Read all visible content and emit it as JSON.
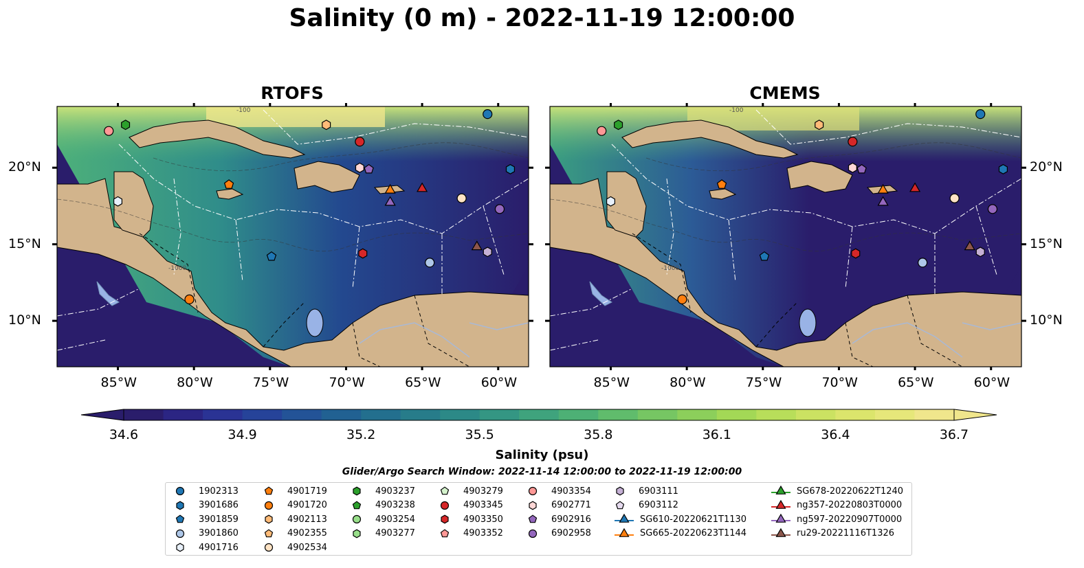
{
  "title": "Salinity (0 m) - 2022-11-19 12:00:00",
  "panels": [
    {
      "title": "RTOFS",
      "lat_ticks": [
        "20°N",
        "15°N",
        "10°N"
      ],
      "lon_ticks": [
        "85°W",
        "80°W",
        "75°W",
        "70°W",
        "65°W",
        "60°W"
      ]
    },
    {
      "title": "CMEMS",
      "lat_ticks": [
        "20°N",
        "15°N",
        "10°N"
      ],
      "lon_ticks": [
        "85°W",
        "80°W",
        "75°W",
        "70°W",
        "65°W",
        "60°W"
      ]
    }
  ],
  "map_extent": {
    "lon": [
      -89,
      -58
    ],
    "lat": [
      7,
      24
    ]
  },
  "colorbar": {
    "label": "Salinity (psu)",
    "ticks": [
      "34.6",
      "34.9",
      "35.2",
      "35.5",
      "35.8",
      "36.1",
      "36.4",
      "36.7"
    ],
    "min": 34.6,
    "max": 36.7,
    "colormap": "haline"
  },
  "colors": {
    "land": "#d2b48c",
    "lake": "#99b3e6",
    "ocean_low": "#2a1d6b",
    "ocean_high": "#f0e68c"
  },
  "search_window": "Glider/Argo Search Window: 2022-11-14 12:00:00 to 2022-11-19 12:00:00",
  "contour_labels": [
    "-100",
    "-1000"
  ],
  "legend": [
    {
      "label": "1902313",
      "marker": "circle",
      "color": "#1f77b4"
    },
    {
      "label": "3901686",
      "marker": "hexagon",
      "color": "#1f77b4"
    },
    {
      "label": "3901859",
      "marker": "pentagon",
      "color": "#1f77b4"
    },
    {
      "label": "3901860",
      "marker": "circle",
      "color": "#aec7e8"
    },
    {
      "label": "4901716",
      "marker": "hexagon",
      "color": "#e8f0fa"
    },
    {
      "label": "4901719",
      "marker": "pentagon",
      "color": "#ff7f0e"
    },
    {
      "label": "4901720",
      "marker": "circle",
      "color": "#ff7f0e"
    },
    {
      "label": "4902113",
      "marker": "hexagon",
      "color": "#ffbb78"
    },
    {
      "label": "4902355",
      "marker": "pentagon",
      "color": "#ffbb78"
    },
    {
      "label": "4902534",
      "marker": "circle",
      "color": "#ffe3c4"
    },
    {
      "label": "4903237",
      "marker": "hexagon",
      "color": "#2ca02c"
    },
    {
      "label": "4903238",
      "marker": "pentagon",
      "color": "#2ca02c"
    },
    {
      "label": "4903254",
      "marker": "circle",
      "color": "#98df8a"
    },
    {
      "label": "4903277",
      "marker": "hexagon",
      "color": "#98df8a"
    },
    {
      "label": "4903279",
      "marker": "pentagon",
      "color": "#d4f2cc"
    },
    {
      "label": "4903345",
      "marker": "circle",
      "color": "#d62728"
    },
    {
      "label": "4903350",
      "marker": "hexagon",
      "color": "#d62728"
    },
    {
      "label": "4903352",
      "marker": "pentagon",
      "color": "#ff9896"
    },
    {
      "label": "4903354",
      "marker": "circle",
      "color": "#ff9896"
    },
    {
      "label": "6902771",
      "marker": "hexagon",
      "color": "#ffd7d6"
    },
    {
      "label": "6902916",
      "marker": "pentagon",
      "color": "#9467bd"
    },
    {
      "label": "6902958",
      "marker": "circle",
      "color": "#9467bd"
    },
    {
      "label": "6903111",
      "marker": "hexagon",
      "color": "#c5b0d5"
    },
    {
      "label": "6903112",
      "marker": "pentagon",
      "color": "#e6dbef"
    },
    {
      "label": "SG610-20220621T1130",
      "marker": "triangle-line",
      "color": "#1f77b4"
    },
    {
      "label": "SG665-20220623T1144",
      "marker": "triangle-line",
      "color": "#ff7f0e"
    },
    {
      "label": "SG678-20220622T1240",
      "marker": "triangle-line",
      "color": "#2ca02c"
    },
    {
      "label": "ng357-20220803T0000",
      "marker": "triangle-line",
      "color": "#d62728"
    },
    {
      "label": "ng597-20220907T0000",
      "marker": "triangle-line",
      "color": "#9467bd"
    },
    {
      "label": "ru29-20221116T1326",
      "marker": "triangle-line",
      "color": "#8c564b"
    }
  ],
  "observations": [
    {
      "id": "1902313",
      "lon": -60.7,
      "lat": 23.5
    },
    {
      "id": "3901686",
      "lon": -59.2,
      "lat": 19.9
    },
    {
      "id": "3901859",
      "lon": -74.9,
      "lat": 14.2
    },
    {
      "id": "3901860",
      "lon": -64.5,
      "lat": 13.8
    },
    {
      "id": "4901716",
      "lon": -85.0,
      "lat": 17.8
    },
    {
      "id": "4901719",
      "lon": -77.7,
      "lat": 18.9
    },
    {
      "id": "4901720",
      "lon": -80.3,
      "lat": 11.4
    },
    {
      "id": "4902113",
      "lon": -71.3,
      "lat": 22.8
    },
    {
      "id": "4902534",
      "lon": -62.4,
      "lat": 18.0
    },
    {
      "id": "4903237",
      "lon": -84.5,
      "lat": 22.8
    },
    {
      "id": "4903345",
      "lon": -69.1,
      "lat": 21.7
    },
    {
      "id": "4903350",
      "lon": -68.9,
      "lat": 14.4
    },
    {
      "id": "4903354",
      "lon": -85.6,
      "lat": 22.4
    },
    {
      "id": "6902771",
      "lon": -69.1,
      "lat": 20.0
    },
    {
      "id": "6902916",
      "lon": -68.5,
      "lat": 19.9
    },
    {
      "id": "6902958",
      "lon": -59.9,
      "lat": 17.3
    },
    {
      "id": "6903111",
      "lon": -60.7,
      "lat": 14.5
    },
    {
      "id": "SG665-20220623T1144",
      "lon": -67.1,
      "lat": 18.6
    },
    {
      "id": "ng357-20220803T0000",
      "lon": -65.0,
      "lat": 18.7
    },
    {
      "id": "ng597-20220907T0000",
      "lon": -67.1,
      "lat": 17.8
    },
    {
      "id": "ru29-20221116T1326",
      "lon": -61.4,
      "lat": 14.9
    }
  ]
}
